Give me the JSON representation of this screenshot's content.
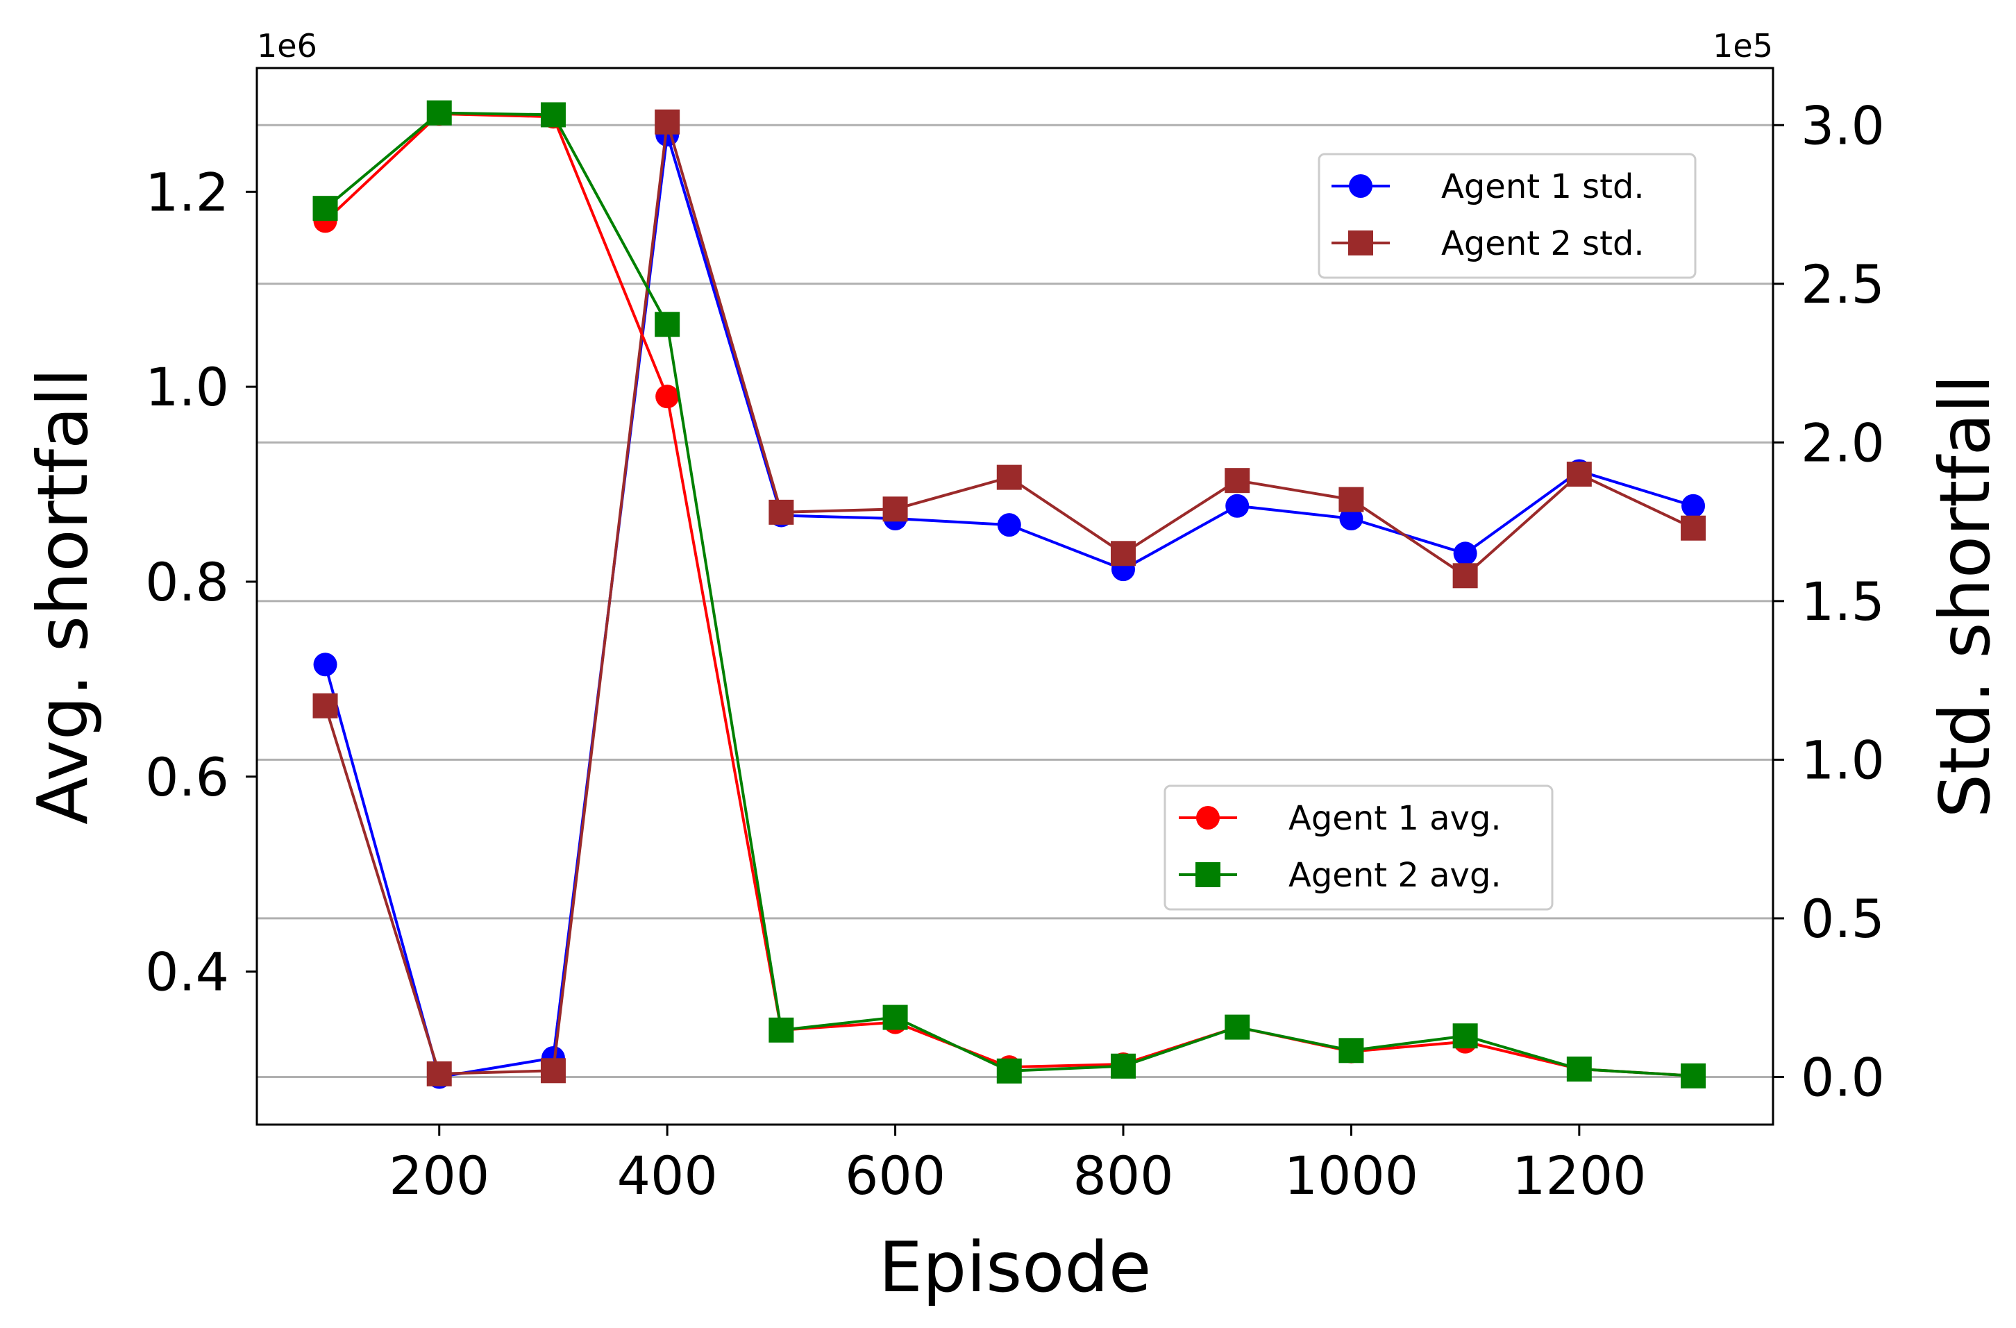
{
  "chart_data": {
    "type": "line",
    "title": "",
    "xlabel": "Episode",
    "ylabel_left": "Avg. shortfall",
    "ylabel_right": "Std. shortfall",
    "left_offset_label": "1e6",
    "right_offset_label": "1e5",
    "x": [
      100,
      200,
      300,
      400,
      500,
      600,
      700,
      800,
      900,
      1000,
      1100,
      1200,
      1300
    ],
    "xlim": [
      40,
      1370
    ],
    "ylim_left": [
      0.243,
      1.327
    ],
    "ylim_right": [
      -0.15,
      3.18
    ],
    "x_ticks": [
      "200",
      "400",
      "600",
      "800",
      "1000",
      "1200"
    ],
    "y_ticks_left": [
      "0.4",
      "0.6",
      "0.8",
      "1.0",
      "1.2"
    ],
    "y_ticks_right": [
      "0.0",
      "0.5",
      "1.0",
      "1.5",
      "2.0",
      "2.5",
      "3.0"
    ],
    "grid": "horizontal, right axis",
    "series": [
      {
        "name": "Agent 1 std.",
        "axis": "right",
        "color": "#0000ff",
        "marker": "circle",
        "values": [
          1.3,
          0.0,
          0.06,
          2.97,
          1.77,
          1.76,
          1.74,
          1.6,
          1.8,
          1.76,
          1.65,
          1.91,
          1.8
        ]
      },
      {
        "name": "Agent 2 std.",
        "axis": "right",
        "color": "#9b2a2a",
        "marker": "square",
        "values": [
          1.17,
          0.01,
          0.02,
          3.01,
          1.78,
          1.79,
          1.89,
          1.65,
          1.88,
          1.82,
          1.58,
          1.9,
          1.73
        ]
      },
      {
        "name": "Agent 1 avg.",
        "axis": "left",
        "color": "#ff0000",
        "marker": "circle",
        "values": [
          1.17,
          1.28,
          1.277,
          0.99,
          0.34,
          0.348,
          0.302,
          0.305,
          0.343,
          0.318,
          0.328,
          0.3,
          0.293
        ]
      },
      {
        "name": "Agent 2 avg.",
        "axis": "left",
        "color": "#008000",
        "marker": "square",
        "values": [
          1.183,
          1.281,
          1.279,
          1.064,
          0.34,
          0.353,
          0.298,
          0.303,
          0.343,
          0.319,
          0.334,
          0.3,
          0.293
        ]
      }
    ],
    "legends": [
      {
        "placement": "upper-right",
        "entries": [
          0,
          1
        ]
      },
      {
        "placement": "lower-right",
        "entries": [
          2,
          3
        ]
      }
    ]
  }
}
